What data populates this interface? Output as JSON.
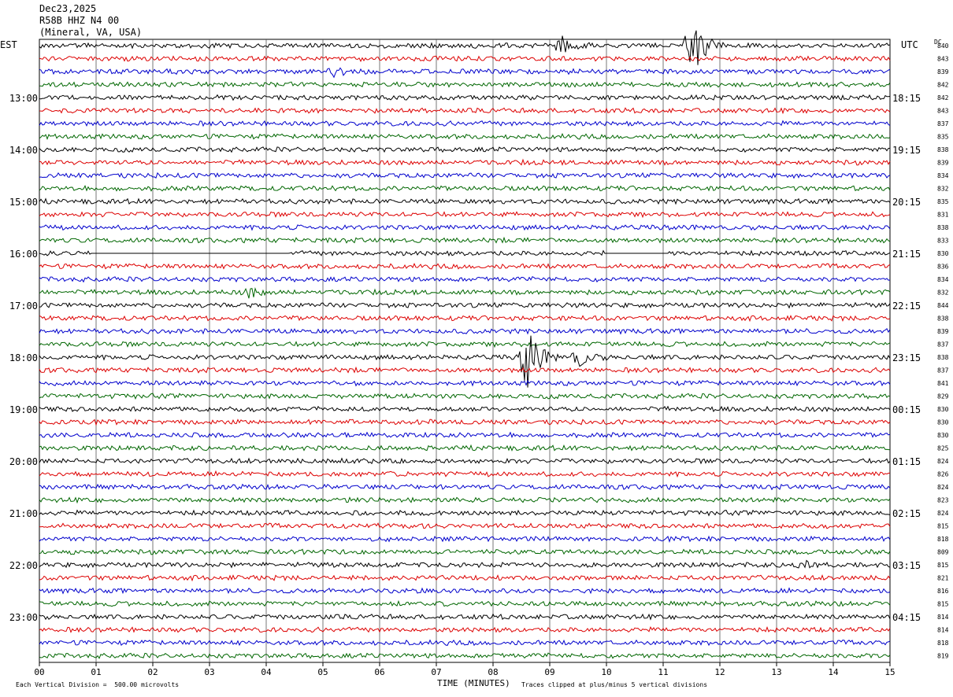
{
  "header": {
    "date": "Dec23,2025",
    "station": "R58B HHZ N4 00",
    "location": "(Mineral, VA, USA)"
  },
  "labels": {
    "left_tz": "EST",
    "right_tz": "UTC",
    "dc_header": "DC"
  },
  "footer": {
    "scale_note": "Each Vertical Division =  500.00 microvolts",
    "xlabel": "TIME (MINUTES)",
    "clip_note": "Traces clipped at plus/minus 5 vertical divisions"
  },
  "colors": {
    "trace_cycle": [
      "#000000",
      "#dd0000",
      "#0000cc",
      "#006600"
    ],
    "grid": "#555555"
  },
  "chart_data": {
    "type": "line",
    "title": "R58B HHZ N4 00",
    "xlabel": "TIME (MINUTES)",
    "xlim": [
      0,
      15
    ],
    "x_ticks": [
      "00",
      "01",
      "02",
      "03",
      "04",
      "05",
      "06",
      "07",
      "08",
      "09",
      "10",
      "11",
      "12",
      "13",
      "14",
      "15"
    ],
    "rows_per_hour": 4,
    "est_labels": [
      "13:00",
      "14:00",
      "15:00",
      "16:00",
      "17:00",
      "18:00",
      "19:00",
      "20:00",
      "21:00",
      "22:00",
      "23:00"
    ],
    "utc_labels": [
      "18:15",
      "19:15",
      "20:15",
      "21:15",
      "22:15",
      "23:15",
      "00:15",
      "01:15",
      "02:15",
      "03:15",
      "04:15"
    ],
    "dc_values": [
      840,
      843,
      839,
      842,
      842,
      843,
      837,
      835,
      838,
      839,
      834,
      832,
      835,
      831,
      838,
      833,
      830,
      836,
      834,
      832,
      844,
      838,
      839,
      837,
      838,
      837,
      841,
      829,
      830,
      830,
      830,
      825,
      824,
      826,
      824,
      823,
      824,
      815,
      818,
      809,
      815,
      821,
      816,
      815,
      814,
      814,
      818,
      819
    ],
    "events": [
      {
        "row": 0,
        "minute": 11.5,
        "amplitude": "large"
      },
      {
        "row": 0,
        "minute": 9.2,
        "amplitude": "medium"
      },
      {
        "row": 2,
        "minute": 5.2,
        "amplitude": "small"
      },
      {
        "row": 19,
        "minute": 3.7,
        "amplitude": "small"
      },
      {
        "row": 24,
        "minute": 8.6,
        "amplitude": "large"
      },
      {
        "row": 24,
        "minute": 9.5,
        "amplitude": "medium"
      },
      {
        "row": 40,
        "minute": 13.4,
        "amplitude": "small"
      }
    ],
    "gaps": [
      {
        "row": 16,
        "from_minute": 0.9,
        "to_minute": 4.4
      },
      {
        "row": 16,
        "from_minute": 10.0,
        "to_minute": 11.1
      }
    ]
  }
}
